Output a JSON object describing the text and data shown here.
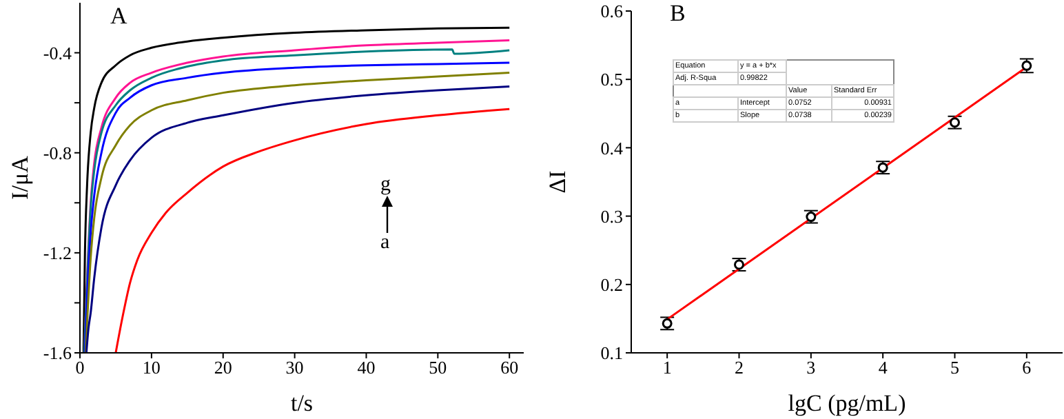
{
  "chart_data": [
    {
      "type": "line",
      "xlabel": "t/s",
      "ylabel": "I/μA",
      "annotations": [
        "A",
        "g",
        "a"
      ],
      "xlim": [
        0,
        62
      ],
      "xticks": [
        0,
        10,
        20,
        30,
        40,
        50,
        60
      ],
      "ylim": [
        -1.6,
        -0.2
      ],
      "yticks": [
        -1.6,
        {
          "value": -1.4,
          "label": null
        },
        -1.2,
        {
          "value": -1.0,
          "label": null
        },
        -0.8,
        {
          "value": -0.6,
          "label": null
        },
        -0.4
      ],
      "marker": "none",
      "line_style": "solid",
      "grid": false,
      "legend": false,
      "series": [
        {
          "color": "#000000",
          "x": [
            0.5,
            0.7,
            1,
            1.5,
            2,
            3,
            5,
            7,
            10,
            15,
            20,
            30,
            40,
            50,
            60
          ],
          "values": [
            -1.6,
            -1.2,
            -0.93,
            -0.72,
            -0.62,
            -0.52,
            -0.45,
            -0.41,
            -0.38,
            -0.355,
            -0.34,
            -0.32,
            -0.31,
            -0.303,
            -0.3
          ]
        },
        {
          "color": "#ff1493",
          "x": [
            0.6,
            1.5,
            2,
            3,
            5,
            7,
            10,
            15,
            20,
            30,
            40,
            50,
            60
          ],
          "values": [
            -1.6,
            -1.0,
            -0.84,
            -0.7,
            -0.58,
            -0.52,
            -0.48,
            -0.44,
            -0.415,
            -0.39,
            -0.37,
            -0.36,
            -0.35
          ]
        },
        {
          "color": "#008080",
          "x": [
            0.6,
            1,
            1.5,
            2,
            3,
            5,
            7,
            10,
            15,
            20,
            30,
            40,
            52,
            52.3,
            60
          ],
          "values": [
            -1.6,
            -1.32,
            -1.02,
            -0.87,
            -0.72,
            -0.61,
            -0.55,
            -0.5,
            -0.455,
            -0.43,
            -0.41,
            -0.395,
            -0.387,
            -0.404,
            -0.39
          ]
        },
        {
          "color": "#0000ff",
          "x": [
            0.7,
            1,
            1.5,
            2,
            3,
            5,
            7,
            10,
            15,
            20,
            30,
            40,
            50,
            60
          ],
          "values": [
            -1.6,
            -1.38,
            -1.12,
            -0.97,
            -0.8,
            -0.64,
            -0.58,
            -0.53,
            -0.5,
            -0.48,
            -0.46,
            -0.45,
            -0.445,
            -0.44
          ]
        },
        {
          "color": "#808000",
          "x": [
            0.8,
            1,
            1.5,
            2,
            3,
            5,
            7,
            10,
            15,
            20,
            30,
            40,
            50,
            60
          ],
          "values": [
            -1.6,
            -1.48,
            -1.22,
            -1.06,
            -0.9,
            -0.77,
            -0.69,
            -0.63,
            -0.59,
            -0.56,
            -0.53,
            -0.51,
            -0.495,
            -0.48
          ]
        },
        {
          "color": "#000080",
          "x": [
            0.9,
            1.2,
            1.5,
            2,
            3,
            5,
            7,
            10,
            15,
            20,
            30,
            40,
            50,
            60
          ],
          "values": [
            -1.6,
            -1.5,
            -1.44,
            -1.3,
            -1.1,
            -0.93,
            -0.83,
            -0.74,
            -0.68,
            -0.65,
            -0.6,
            -0.57,
            -0.55,
            -0.535
          ]
        },
        {
          "color": "#ff0000",
          "x": [
            5,
            6,
            7,
            8,
            10,
            12,
            15,
            20,
            25,
            30,
            40,
            50,
            60
          ],
          "values": [
            -1.6,
            -1.45,
            -1.32,
            -1.23,
            -1.12,
            -1.04,
            -0.96,
            -0.855,
            -0.795,
            -0.75,
            -0.685,
            -0.65,
            -0.625
          ]
        }
      ]
    },
    {
      "type": "scatter",
      "xlabel": "lgC (pg/mL)",
      "ylabel": "ΔI",
      "annotations": [
        "B",
        "Equation",
        "y = a + b*x",
        "Adj. R-Squa",
        "0.99822",
        "Value",
        "Standard Err",
        "a",
        "Intercept",
        "0.0752",
        "0.00931",
        "b",
        "Slope",
        "0.0738",
        "0.00239"
      ],
      "xlim": [
        0.5,
        6.5
      ],
      "xticks": [
        1,
        2,
        3,
        4,
        5,
        6
      ],
      "ylim": [
        0.1,
        0.6
      ],
      "yticks": [
        0.1,
        0.2,
        0.3,
        0.4,
        0.5,
        0.6
      ],
      "grid": false,
      "legend": false,
      "series": [
        {
          "type": "scatter",
          "color": "#000000",
          "marker": "circle",
          "x": [
            1,
            2,
            3,
            4,
            5,
            6
          ],
          "values": [
            0.143,
            0.229,
            0.299,
            0.371,
            0.437,
            0.52
          ],
          "errors": [
            0.009,
            0.009,
            0.009,
            0.009,
            0.009,
            0.01
          ]
        },
        {
          "type": "line",
          "color": "#ff0000",
          "marker": "none",
          "x": [
            1,
            6
          ],
          "values": [
            0.149,
            0.518
          ]
        }
      ]
    }
  ]
}
